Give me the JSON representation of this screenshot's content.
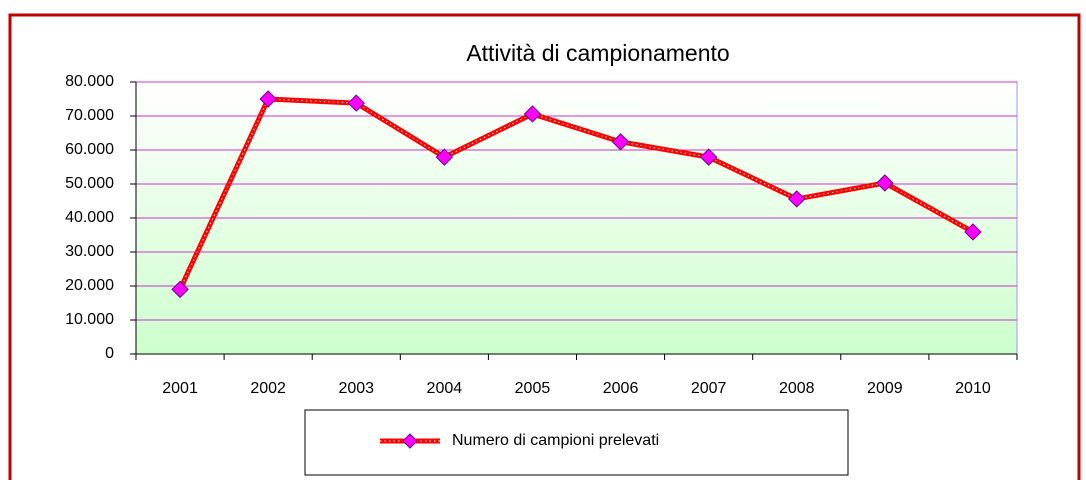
{
  "chart_data": {
    "type": "line",
    "title": "Attività di campionamento",
    "categories": [
      "2001",
      "2002",
      "2003",
      "2004",
      "2005",
      "2006",
      "2007",
      "2008",
      "2009",
      "2010"
    ],
    "series": [
      {
        "name": "Numero di campioni prelevati",
        "color": "#ff0000",
        "marker_color": "#ff00ff",
        "values": [
          19000,
          75000,
          73800,
          57900,
          70600,
          62400,
          57900,
          45600,
          50300,
          35900
        ]
      }
    ],
    "ylim": [
      0,
      80000
    ],
    "yticks": [
      0,
      {
        "value": 10000,
        "label": "10.000"
      },
      {
        "value": 20000,
        "label": "20.000"
      },
      {
        "value": 30000,
        "label": "30.000"
      },
      {
        "value": 40000,
        "label": "40.000"
      },
      {
        "value": 50000,
        "label": "50.000"
      },
      {
        "value": 60000,
        "label": "60.000"
      },
      {
        "value": 70000,
        "label": "70.000"
      },
      {
        "value": 80000,
        "label": "80.000"
      }
    ],
    "grid": true,
    "legend": "bottom"
  }
}
